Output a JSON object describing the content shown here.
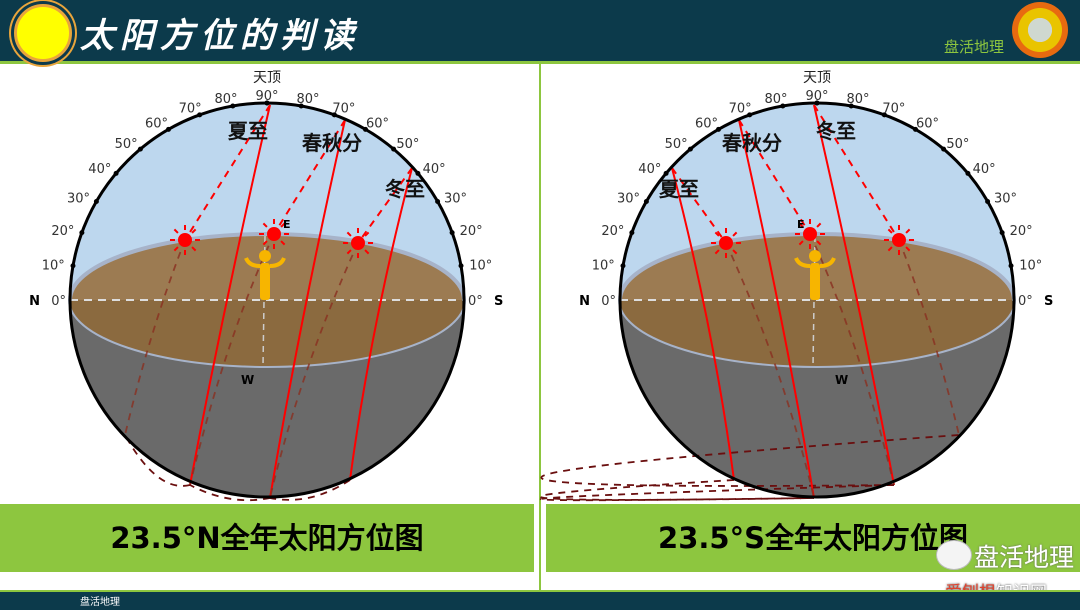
{
  "header": {
    "title": "太阳方位的判读",
    "brand": "盘活地理",
    "brand_logo_text": "盘活地理"
  },
  "colors": {
    "sky": "#bdd7ee",
    "ground": "#9c7b52",
    "underground": "#6a6a6a",
    "path": "#ff0000",
    "sun": "#ff0000",
    "person": "#f7b500",
    "accent": "#8dc63f",
    "header_bg": "#0c3a4b"
  },
  "degrees": [
    "0°",
    "10°",
    "20°",
    "30°",
    "40°",
    "50°",
    "60°",
    "70°",
    "80°",
    "90°"
  ],
  "zenith": "天顶",
  "diagrams": [
    {
      "caption": "23.5°N全年太阳方位图",
      "left_dir": "N",
      "right_dir": "S",
      "east": "E",
      "west": "W",
      "paths": [
        {
          "label": "夏至",
          "noon_altitude": "90°"
        },
        {
          "label": "春秋分",
          "noon_altitude": "66.5°"
        },
        {
          "label": "冬至",
          "noon_altitude": "43°"
        }
      ]
    },
    {
      "caption": "23.5°S全年太阳方位图",
      "left_dir": "N",
      "right_dir": "S",
      "east": "E",
      "west": "W",
      "paths": [
        {
          "label": "冬至",
          "noon_altitude": "90°"
        },
        {
          "label": "春秋分",
          "noon_altitude": "66.5°"
        },
        {
          "label": "夏至",
          "noon_altitude": "43°"
        }
      ]
    }
  ],
  "footer": {
    "text": "盘活地理"
  },
  "watermark": {
    "text": "盘活地理",
    "site_a": "爱刨根",
    "site_b": "知识网"
  }
}
